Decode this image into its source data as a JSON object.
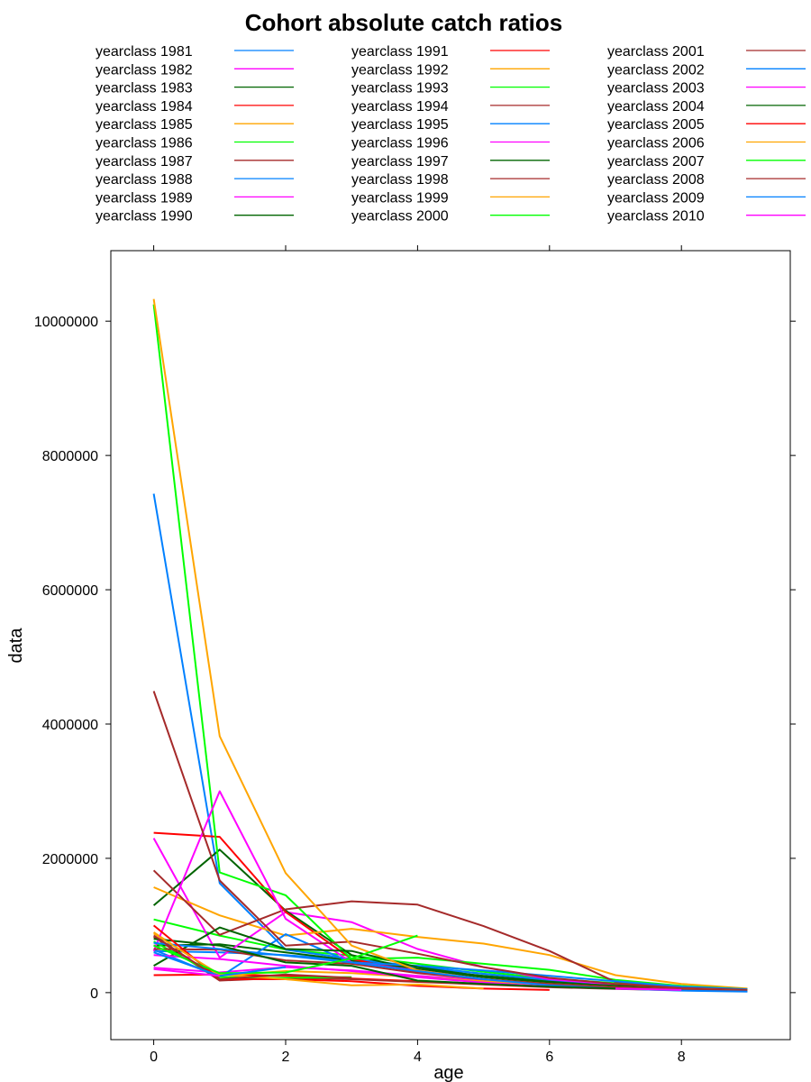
{
  "chart_data": {
    "type": "line",
    "title": "Cohort absolute catch ratios",
    "xlabel": "age",
    "ylabel": "data",
    "xlim": [
      -0.65,
      9.65
    ],
    "ylim": [
      -700000,
      11050000
    ],
    "xticks": [
      0,
      2,
      4,
      6,
      8
    ],
    "xtick_labels": [
      "0",
      "2",
      "4",
      "6",
      "8"
    ],
    "yticks": [
      0,
      2000000,
      4000000,
      6000000,
      8000000,
      10000000
    ],
    "ytick_labels": [
      "0",
      "2000000",
      "4000000",
      "6000000",
      "8000000",
      "10000000"
    ],
    "top_ticks": [
      0,
      2,
      4,
      6,
      8
    ],
    "right_ticks": [
      0,
      2000000,
      4000000,
      6000000,
      8000000,
      10000000
    ],
    "grid": false,
    "legend_placement": "top",
    "series": [
      {
        "name": "yearclass 1981",
        "color": "#0080ff",
        "x": [
          0,
          1,
          2,
          3,
          4,
          5,
          6,
          7,
          8,
          9
        ],
        "values": [
          620000,
          600000,
          560000,
          480000,
          380000,
          280000,
          190000,
          120000,
          70000,
          40000
        ]
      },
      {
        "name": "yearclass 1982",
        "color": "#ff00ff",
        "x": [
          0,
          1,
          2,
          3,
          4,
          5,
          6,
          7,
          8,
          9
        ],
        "values": [
          370000,
          300000,
          380000,
          330000,
          250000,
          180000,
          120000,
          80000,
          50000,
          30000
        ]
      },
      {
        "name": "yearclass 1983",
        "color": "#006400",
        "x": [
          0,
          1,
          2,
          3,
          4,
          5,
          6,
          7,
          8,
          9
        ],
        "values": [
          700000,
          720000,
          600000,
          480000,
          350000,
          250000,
          170000,
          110000,
          70000,
          40000
        ]
      },
      {
        "name": "yearclass 1984",
        "color": "#ff0000",
        "x": [
          0,
          1,
          2,
          3,
          4,
          5,
          6,
          7,
          8,
          9
        ],
        "values": [
          260000,
          270000,
          250000,
          210000,
          170000,
          130000,
          90000,
          60000,
          40000,
          25000
        ]
      },
      {
        "name": "yearclass 1985",
        "color": "#ffa500",
        "x": [
          0,
          1,
          2,
          3,
          4,
          5,
          6,
          7,
          8,
          9
        ],
        "values": [
          900000,
          250000,
          320000,
          290000,
          230000,
          170000,
          120000,
          80000,
          50000,
          30000
        ]
      },
      {
        "name": "yearclass 1986",
        "color": "#00ff00",
        "x": [
          0,
          1,
          2,
          3,
          4,
          5,
          6,
          7,
          8,
          9
        ],
        "values": [
          1090000,
          850000,
          640000,
          550000,
          430000,
          310000,
          210000,
          140000,
          90000,
          50000
        ]
      },
      {
        "name": "yearclass 1987",
        "color": "#a52a2a",
        "x": [
          0,
          1,
          2,
          3,
          4,
          5,
          6,
          7,
          8,
          9
        ],
        "values": [
          830000,
          180000,
          220000,
          200000,
          160000,
          120000,
          80000,
          55000,
          35000,
          20000
        ]
      },
      {
        "name": "yearclass 1988",
        "color": "#0080ff",
        "x": [
          0,
          1,
          2,
          3,
          4,
          5,
          6,
          7,
          8,
          9
        ],
        "values": [
          7430000,
          1630000,
          640000,
          500000,
          390000,
          280000,
          190000,
          120000,
          70000,
          40000
        ]
      },
      {
        "name": "yearclass 1989",
        "color": "#ff00ff",
        "x": [
          0,
          1,
          2,
          3,
          4,
          5,
          6,
          7,
          8,
          9
        ],
        "values": [
          2300000,
          520000,
          1200000,
          1050000,
          650000,
          380000,
          200000,
          120000,
          70000,
          40000
        ]
      },
      {
        "name": "yearclass 1990",
        "color": "#006400",
        "x": [
          0,
          1,
          2,
          3,
          4,
          5,
          6,
          7,
          8,
          9
        ],
        "values": [
          1300000,
          2130000,
          1220000,
          560000,
          340000,
          230000,
          150000,
          100000,
          60000,
          35000
        ]
      },
      {
        "name": "yearclass 1991",
        "color": "#ff0000",
        "x": [
          0,
          1,
          2,
          3,
          4,
          5,
          6,
          7,
          8,
          9
        ],
        "values": [
          2380000,
          2320000,
          1200000,
          500000,
          300000,
          200000,
          130000,
          80000,
          50000,
          30000
        ]
      },
      {
        "name": "yearclass 1992",
        "color": "#ffa500",
        "x": [
          0,
          1,
          2,
          3,
          4,
          5,
          6,
          7,
          8,
          9
        ],
        "values": [
          1570000,
          1150000,
          850000,
          950000,
          830000,
          730000,
          560000,
          260000,
          130000,
          60000
        ]
      },
      {
        "name": "yearclass 1993",
        "color": "#00ff00",
        "x": [
          0,
          1,
          2,
          3,
          4,
          5,
          6,
          7,
          8,
          9
        ],
        "values": [
          10250000,
          1790000,
          1450000,
          500000,
          520000,
          430000,
          340000,
          190000,
          100000,
          50000
        ]
      },
      {
        "name": "yearclass 1994",
        "color": "#a52a2a",
        "x": [
          0,
          1,
          2,
          3,
          4,
          5,
          6,
          7,
          8,
          9
        ],
        "values": [
          1820000,
          860000,
          1240000,
          1360000,
          1310000,
          990000,
          620000,
          160000,
          80000,
          40000
        ]
      },
      {
        "name": "yearclass 1995",
        "color": "#0080ff",
        "x": [
          0,
          1,
          2,
          3,
          4,
          5,
          6,
          7,
          8,
          9
        ],
        "values": [
          640000,
          230000,
          870000,
          450000,
          400000,
          330000,
          250000,
          170000,
          90000,
          50000
        ]
      },
      {
        "name": "yearclass 1996",
        "color": "#ff00ff",
        "x": [
          0,
          1,
          2,
          3,
          4,
          5,
          6,
          7,
          8,
          9
        ],
        "values": [
          620000,
          3000000,
          1100000,
          450000,
          330000,
          200000,
          120000,
          70000,
          40000,
          25000
        ]
      },
      {
        "name": "yearclass 1997",
        "color": "#006400",
        "x": [
          0,
          1,
          2,
          3,
          4,
          5,
          6,
          7,
          8,
          9
        ],
        "values": [
          400000,
          970000,
          650000,
          620000,
          380000,
          240000,
          150000,
          100000,
          60000,
          30000
        ]
      },
      {
        "name": "yearclass 1998",
        "color": "#a52a2a",
        "x": [
          0,
          1,
          2,
          3,
          4,
          5,
          6,
          7,
          8,
          9
        ],
        "values": [
          4490000,
          1670000,
          700000,
          760000,
          580000,
          380000,
          220000,
          130000,
          70000,
          40000
        ]
      },
      {
        "name": "yearclass 1999",
        "color": "#ffa500",
        "x": [
          0,
          1,
          2,
          3,
          4,
          5,
          6,
          7,
          8,
          9
        ],
        "values": [
          10330000,
          3820000,
          1780000,
          700000,
          330000,
          200000,
          130000,
          80000,
          50000,
          30000
        ]
      },
      {
        "name": "yearclass 2000",
        "color": "#00ff00",
        "x": [
          0,
          1,
          2,
          3
        ],
        "values": [
          760000,
          230000,
          220000,
          230000
        ]
      },
      {
        "name": "yearclass 2001",
        "color": "#a52a2a",
        "x": [
          0,
          1,
          2,
          3,
          4,
          5,
          6,
          7,
          8,
          9
        ],
        "values": [
          650000,
          640000,
          480000,
          430000,
          290000,
          200000,
          130000,
          80000,
          50000,
          30000
        ]
      },
      {
        "name": "yearclass 2002",
        "color": "#0080ff",
        "x": [
          0,
          1,
          2,
          3,
          4,
          5,
          6,
          7,
          8,
          9
        ],
        "values": [
          740000,
          650000,
          550000,
          450000,
          320000,
          200000,
          110000,
          60000,
          30000,
          15000
        ]
      },
      {
        "name": "yearclass 2003",
        "color": "#ff00ff",
        "x": [
          0,
          1,
          2,
          3,
          4,
          5,
          6,
          7,
          8
        ],
        "values": [
          560000,
          500000,
          400000,
          320000,
          230000,
          150000,
          90000,
          60000,
          40000
        ]
      },
      {
        "name": "yearclass 2004",
        "color": "#006400",
        "x": [
          0,
          1,
          2,
          3,
          4,
          5,
          6,
          7
        ],
        "values": [
          800000,
          700000,
          450000,
          400000,
          180000,
          130000,
          90000,
          60000
        ]
      },
      {
        "name": "yearclass 2005",
        "color": "#ff0000",
        "x": [
          0,
          1,
          2,
          3,
          4,
          5,
          6
        ],
        "values": [
          1000000,
          200000,
          200000,
          170000,
          100000,
          60000,
          40000
        ]
      },
      {
        "name": "yearclass 2006",
        "color": "#ffa500",
        "x": [
          0,
          1,
          2,
          3,
          4,
          5
        ],
        "values": [
          880000,
          270000,
          200000,
          110000,
          120000,
          60000
        ]
      },
      {
        "name": "yearclass 2007",
        "color": "#00ff00",
        "x": [
          0,
          1,
          2,
          3,
          4
        ],
        "values": [
          700000,
          290000,
          300000,
          510000,
          850000
        ]
      },
      {
        "name": "yearclass 2008",
        "color": "#a52a2a",
        "x": [
          0,
          1,
          2,
          3
        ],
        "values": [
          850000,
          200000,
          270000,
          220000
        ]
      },
      {
        "name": "yearclass 2009",
        "color": "#0080ff",
        "x": [
          0,
          1,
          2
        ],
        "values": [
          600000,
          250000,
          380000
        ]
      },
      {
        "name": "yearclass 2010",
        "color": "#ff00ff",
        "x": [
          0,
          1
        ],
        "values": [
          350000,
          250000
        ]
      }
    ]
  }
}
